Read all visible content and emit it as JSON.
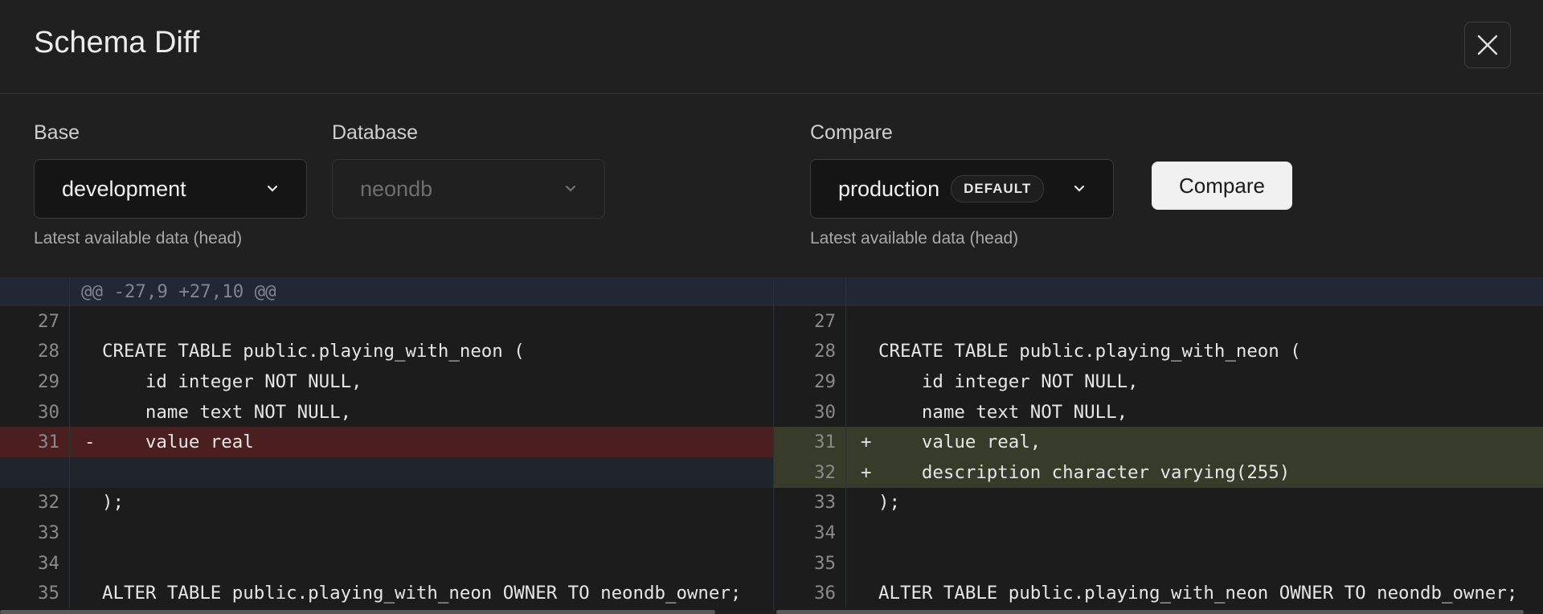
{
  "dialog": {
    "title": "Schema Diff",
    "close_icon": "close-icon"
  },
  "base": {
    "label": "Base",
    "value": "development",
    "help": "Latest available data (head)"
  },
  "database": {
    "label": "Database",
    "value": "neondb"
  },
  "compare": {
    "label": "Compare",
    "value": "production",
    "badge": "DEFAULT",
    "help": "Latest available data (head)",
    "button": "Compare"
  },
  "colors": {
    "removed": "#4b1f1f",
    "added": "#363c29",
    "hunk": "#212834",
    "background": "#202020"
  },
  "diff": {
    "hunk_header": "@@ -27,9 +27,10 @@",
    "left": [
      {
        "num": "27",
        "marker": "",
        "text": "",
        "type": "ctx"
      },
      {
        "num": "28",
        "marker": "",
        "text": "CREATE TABLE public.playing_with_neon (",
        "type": "ctx"
      },
      {
        "num": "29",
        "marker": "",
        "text": "    id integer NOT NULL,",
        "type": "ctx"
      },
      {
        "num": "30",
        "marker": "",
        "text": "    name text NOT NULL,",
        "type": "ctx"
      },
      {
        "num": "31",
        "marker": "-",
        "text": "    value real",
        "type": "del"
      },
      {
        "num": "",
        "marker": "",
        "text": "",
        "type": "empty"
      },
      {
        "num": "32",
        "marker": "",
        "text": ");",
        "type": "ctx"
      },
      {
        "num": "33",
        "marker": "",
        "text": "",
        "type": "ctx"
      },
      {
        "num": "34",
        "marker": "",
        "text": "",
        "type": "ctx"
      },
      {
        "num": "35",
        "marker": "",
        "text": "ALTER TABLE public.playing_with_neon OWNER TO neondb_owner;",
        "type": "ctx"
      }
    ],
    "right": [
      {
        "num": "27",
        "marker": "",
        "text": "",
        "type": "ctx"
      },
      {
        "num": "28",
        "marker": "",
        "text": "CREATE TABLE public.playing_with_neon (",
        "type": "ctx"
      },
      {
        "num": "29",
        "marker": "",
        "text": "    id integer NOT NULL,",
        "type": "ctx"
      },
      {
        "num": "30",
        "marker": "",
        "text": "    name text NOT NULL,",
        "type": "ctx"
      },
      {
        "num": "31",
        "marker": "+",
        "text": "    value real,",
        "type": "add"
      },
      {
        "num": "32",
        "marker": "+",
        "text": "    description character varying(255)",
        "type": "add"
      },
      {
        "num": "33",
        "marker": "",
        "text": ");",
        "type": "ctx"
      },
      {
        "num": "34",
        "marker": "",
        "text": "",
        "type": "ctx"
      },
      {
        "num": "35",
        "marker": "",
        "text": "",
        "type": "ctx"
      },
      {
        "num": "36",
        "marker": "",
        "text": "ALTER TABLE public.playing_with_neon OWNER TO neondb_owner;",
        "type": "ctx"
      }
    ]
  }
}
